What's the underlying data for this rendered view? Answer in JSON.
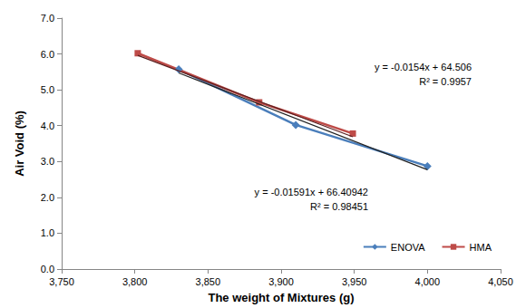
{
  "chart_data": {
    "type": "scatter",
    "x_label": "The weight of Mixtures (g)",
    "y_label": "Air Void (%)",
    "series": [
      {
        "name": "ENOVA",
        "color": "#4a7ebb",
        "marker": "diamond",
        "line_style": "solid",
        "x": [
          3830,
          3910,
          4000
        ],
        "values": [
          5.57,
          4.02,
          2.87
        ]
      },
      {
        "name": "HMA",
        "color": "#be4b48",
        "marker": "square",
        "line_style": "solid",
        "x": [
          3802,
          3885,
          3949
        ],
        "values": [
          6.02,
          4.65,
          3.78
        ]
      }
    ],
    "trendlines": [
      {
        "series": "ENOVA",
        "color": "#222222",
        "line_style": "solid",
        "x": [
          3830,
          4000
        ],
        "values": [
          5.47,
          2.77
        ]
      },
      {
        "series": "HMA",
        "color": "#5a1f1f",
        "line_style": "solid",
        "x": [
          3802,
          3949
        ],
        "values": [
          5.96,
          3.69
        ]
      }
    ],
    "annotations": [
      "y = -0.0154x + 64.506\nR² = 0.9957",
      "y = -0.01591x + 66.40942\nR² = 0.98451"
    ],
    "xlim": [
      3750,
      4050
    ],
    "xticks": [
      {
        "value": 3750,
        "label": "3,750"
      },
      {
        "value": 3800,
        "label": "3,800"
      },
      {
        "value": 3850,
        "label": "3,850"
      },
      {
        "value": 3900,
        "label": "3,900"
      },
      {
        "value": 3950,
        "label": "3,950"
      },
      {
        "value": 4000,
        "label": "4,000"
      },
      {
        "value": 4050,
        "label": "4,050"
      }
    ],
    "ylim": [
      0,
      7
    ],
    "yticks": [
      {
        "value": 0,
        "label": "0.0"
      },
      {
        "value": 1,
        "label": "1.0"
      },
      {
        "value": 2,
        "label": "2.0"
      },
      {
        "value": 3,
        "label": "3.0"
      },
      {
        "value": 4,
        "label": "4.0"
      },
      {
        "value": 5,
        "label": "5.0"
      },
      {
        "value": 6,
        "label": "6.0"
      },
      {
        "value": 7,
        "label": "7.0"
      }
    ],
    "grid": false,
    "legend": "lower right"
  }
}
